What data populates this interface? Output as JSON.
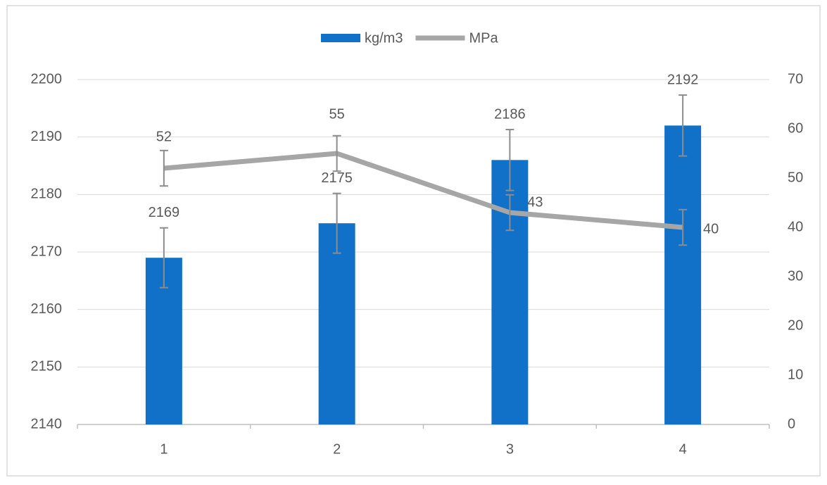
{
  "chart_data": {
    "type": "bar-line",
    "categories": [
      "1",
      "2",
      "3",
      "4"
    ],
    "series": [
      {
        "name": "kg/m3",
        "type": "bar",
        "color": "#1170c8",
        "values": [
          2169,
          2175,
          2186,
          2192
        ],
        "errors": [
          5.2,
          5.2,
          5.3,
          5.3
        ]
      },
      {
        "name": "MPa",
        "type": "line",
        "axis": "y2",
        "color": "#a6a6a6",
        "values": [
          52,
          55,
          43,
          40
        ],
        "errors": [
          3.6,
          3.6,
          3.6,
          3.6
        ]
      }
    ],
    "ylim": [
      2140,
      2200
    ],
    "yticks": [
      2140,
      2150,
      2160,
      2170,
      2180,
      2190,
      2200
    ],
    "y2lim": [
      0,
      70
    ],
    "y2ticks": [
      0,
      10,
      20,
      30,
      40,
      50,
      60,
      70
    ],
    "grid": true,
    "legend": "top",
    "error_bar_color": "#8c8c8c"
  }
}
